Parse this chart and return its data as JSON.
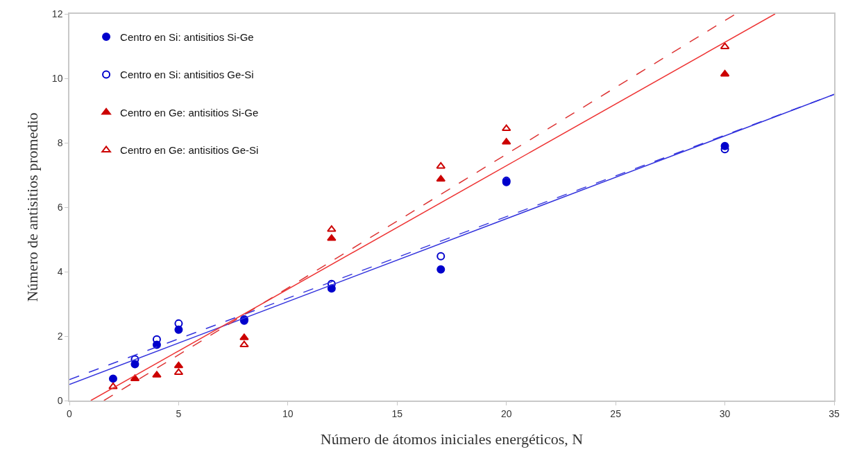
{
  "chart_data": {
    "type": "scatter",
    "xlabel": "Número de átomos iniciales energéticos, N",
    "ylabel": "Número de antisitios promedio",
    "xlim": [
      0,
      35
    ],
    "xticks": [
      0,
      5,
      10,
      15,
      20,
      25,
      30,
      35
    ],
    "ylim": [
      0,
      12
    ],
    "yticks": [
      0,
      2,
      4,
      6,
      8,
      10,
      12
    ],
    "legend": "top left",
    "series": [
      {
        "name": "Centro en Si: antisitios Si-Ge",
        "color": "#0000cc",
        "marker": "circle",
        "x": [
          2,
          3,
          4,
          5,
          8,
          12,
          17,
          20,
          30
        ],
        "values": [
          0.68,
          1.13,
          1.73,
          2.2,
          2.48,
          3.48,
          4.07,
          6.78,
          7.9
        ]
      },
      {
        "name": "Centro en Si: antisitios Ge-Si",
        "color": "#0000cc",
        "marker": "circle-open",
        "x": [
          3,
          4,
          5,
          8,
          12,
          17,
          20,
          30
        ],
        "values": [
          1.28,
          1.9,
          2.39,
          2.52,
          3.62,
          4.48,
          6.82,
          7.8
        ]
      },
      {
        "name": "Centro en Ge: antisitios Si-Ge",
        "color": "#cc0000",
        "marker": "triangle",
        "x": [
          3,
          4,
          5,
          8,
          12,
          17,
          20,
          30
        ],
        "values": [
          0.68,
          0.79,
          1.08,
          1.95,
          5.03,
          6.87,
          8.02,
          10.13
        ]
      },
      {
        "name": "Centro en Ge: antisitios Ge-Si",
        "color": "#cc0000",
        "marker": "triangle-open",
        "x": [
          2,
          3,
          4,
          5,
          8,
          12,
          17,
          20,
          30
        ],
        "values": [
          0.43,
          null,
          null,
          0.87,
          1.73,
          5.31,
          7.27,
          8.44,
          10.98
        ]
      },
      {
        "type": "line",
        "color": "#3333dd",
        "line_style": "solid",
        "x": [
          0,
          35
        ],
        "values": [
          0.5,
          9.5
        ]
      },
      {
        "type": "line",
        "color": "#3333dd",
        "line_style": "dashed",
        "x": [
          0,
          35
        ],
        "values": [
          0.65,
          9.5
        ]
      },
      {
        "type": "line",
        "color": "#ee3333",
        "line_style": "solid",
        "x": [
          0.98,
          32.3
        ],
        "values": [
          0,
          12
        ]
      },
      {
        "type": "line",
        "color": "#dd3333",
        "line_style": "dashed",
        "x": [
          1.58,
          30.5
        ],
        "values": [
          0,
          12
        ]
      }
    ]
  }
}
